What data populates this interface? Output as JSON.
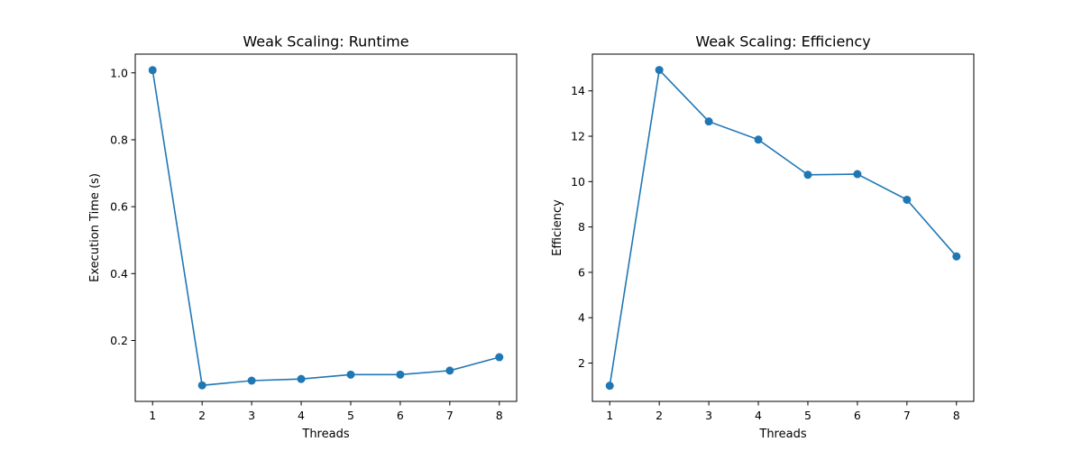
{
  "chart_data": [
    {
      "type": "line",
      "title": "Weak Scaling: Runtime",
      "xlabel": "Threads",
      "ylabel": "Execution Time (s)",
      "x": [
        1,
        2,
        3,
        4,
        5,
        6,
        7,
        8
      ],
      "xlim": [
        0.65,
        8.35
      ],
      "ylim": [
        0.018,
        1.056
      ],
      "xticks": [
        1,
        2,
        3,
        4,
        5,
        6,
        7,
        8
      ],
      "yticks": [
        0.2,
        0.4,
        0.6,
        0.8,
        1.0
      ],
      "ytick_labels": [
        "0.2",
        "0.4",
        "0.6",
        "0.8",
        "1.0"
      ],
      "grid": false,
      "marker": "circle",
      "color": "#1f77b4",
      "series": [
        {
          "values": [
            1.008,
            0.066,
            0.08,
            0.085,
            0.098,
            0.098,
            0.11,
            0.15
          ]
        }
      ]
    },
    {
      "type": "line",
      "title": "Weak Scaling: Efficiency",
      "xlabel": "Threads",
      "ylabel": "Efficiency",
      "x": [
        1,
        2,
        3,
        4,
        5,
        6,
        7,
        8
      ],
      "xlim": [
        0.65,
        8.35
      ],
      "ylim": [
        0.31,
        15.62
      ],
      "xticks": [
        1,
        2,
        3,
        4,
        5,
        6,
        7,
        8
      ],
      "yticks": [
        2,
        4,
        6,
        8,
        10,
        12,
        14
      ],
      "ytick_labels": [
        "2",
        "4",
        "6",
        "8",
        "10",
        "12",
        "14"
      ],
      "grid": false,
      "marker": "circle",
      "color": "#1f77b4",
      "series": [
        {
          "values": [
            1.0,
            14.92,
            12.65,
            11.85,
            10.3,
            10.33,
            9.2,
            6.7
          ]
        }
      ]
    }
  ]
}
